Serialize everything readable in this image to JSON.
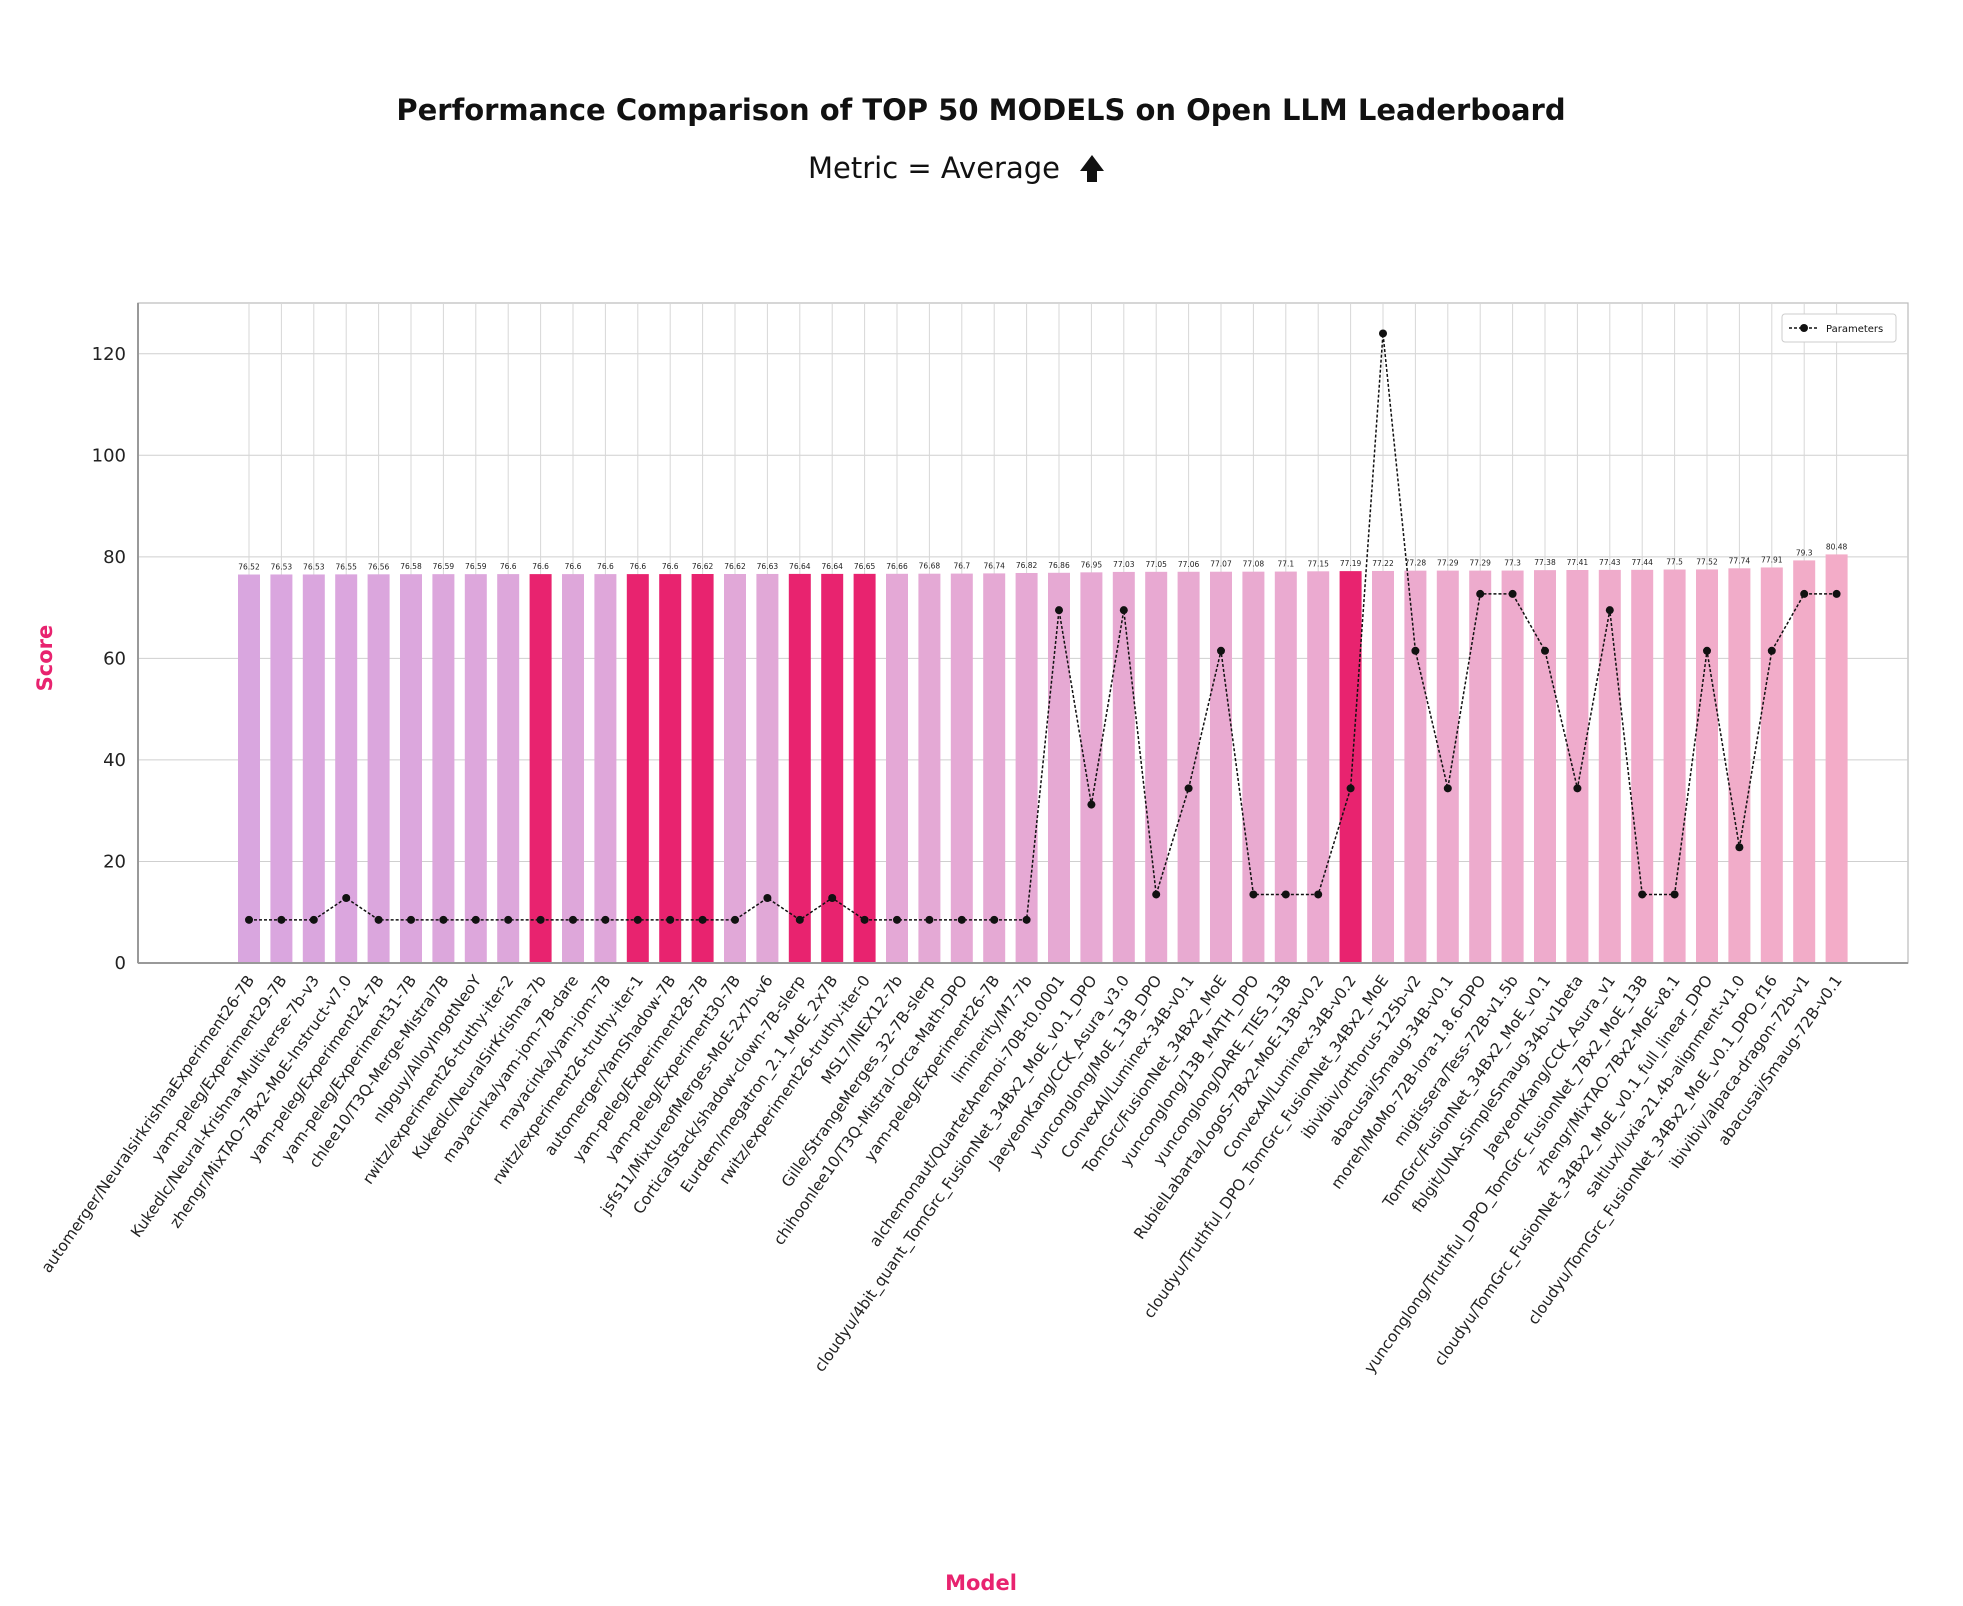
{
  "chart_data": {
    "type": "bar",
    "title": "Performance Comparison of TOP 50 MODELS on Open LLM Leaderboard",
    "subtitle": "Metric = Average",
    "subtitle_icon": "up-arrow-icon",
    "xlabel": "Model",
    "ylabel": "Score",
    "ylim": [
      0,
      130
    ],
    "yticks": [
      0,
      20,
      40,
      60,
      80,
      100,
      120
    ],
    "grid": true,
    "legend": {
      "entries": [
        "Parameters"
      ],
      "position": "top-right"
    },
    "highlight_color": "#e8236f",
    "bar_gradient": [
      "#d9a6df",
      "#f3acc8"
    ],
    "line_color": "#111111",
    "categories": [
      "automerger/NeuralsirkrishnaExperiment26-7B",
      "yam-peleg/Experiment29-7B",
      "Kukedlc/Neural-Krishna-Multiverse-7b-v3",
      "zhengr/MixTAO-7Bx2-MoE-Instruct-v7.0",
      "yam-peleg/Experiment24-7B",
      "yam-peleg/Experiment31-7B",
      "chlee10/T3Q-Merge-Mistral7B",
      "nlpguy/AlloyIngotNeoY",
      "rwitz/experiment26-truthy-iter-2",
      "Kukedlc/NeuralSirKrishna-7b",
      "mayacinka/yam-jom-7B-dare",
      "mayacinka/yam-jom-7B",
      "rwitz/experiment26-truthy-iter-1",
      "automerger/YamShadow-7B",
      "yam-peleg/Experiment28-7B",
      "yam-peleg/Experiment30-7B",
      "jsfs11/MixtureofMerges-MoE-2x7b-v6",
      "CorticalStack/shadow-clown-7B-slerp",
      "Eurdem/megatron_2.1_MoE_2x7B",
      "rwitz/experiment26-truthy-iter-0",
      "MSL7/INEX12-7b",
      "Gille/StrangeMerges_32-7B-slerp",
      "chihoonlee10/T3Q-Mistral-Orca-Math-DPO",
      "yam-peleg/Experiment26-7B",
      "liminerity/M7-7b",
      "alchemonaut/QuartetAnemoi-70B-t0.0001",
      "cloudyu/4bit_quant_TomGrc_FusionNet_34Bx2_MoE_v0.1_DPO",
      "JaeyeonKang/CCK_Asura_v3.0",
      "yunconglong/MoE_13B_DPO",
      "ConvexAI/Luminex-34B-v0.1",
      "TomGrc/FusionNet_34Bx2_MoE",
      "yunconglong/13B_MATH_DPO",
      "yunconglong/DARE_TIES_13B",
      "RubielLabarta/LogoS-7Bx2-MoE-13B-v0.2",
      "ConvexAI/Luminex-34B-v0.2",
      "cloudyu/Truthful_DPO_TomGrc_FusionNet_34Bx2_MoE",
      "ibivibiv/orthorus-125b-v2",
      "abacusai/Smaug-34B-v0.1",
      "moreh/MoMo-72B-lora-1.8.6-DPO",
      "migtissera/Tess-72B-v1.5b",
      "TomGrc/FusionNet_34Bx2_MoE_v0.1",
      "fblgit/UNA-SimpleSmaug-34b-v1beta",
      "JaeyeonKang/CCK_Asura_v1",
      "yunconglong/Truthful_DPO_TomGrc_FusionNet_7Bx2_MoE_13B",
      "zhengr/MixTAO-7Bx2-MoE-v8.1",
      "cloudyu/TomGrc_FusionNet_34Bx2_MoE_v0.1_full_linear_DPO",
      "saltlux/luxia-21.4b-alignment-v1.0",
      "cloudyu/TomGrc_FusionNet_34Bx2_MoE_v0.1_DPO_f16",
      "ibivibiv/alpaca-dragon-72b-v1",
      "abacusai/Smaug-72B-v0.1"
    ],
    "series": [
      {
        "name": "Average",
        "type": "bar",
        "values": [
          76.52,
          76.53,
          76.53,
          76.55,
          76.56,
          76.58,
          76.59,
          76.59,
          76.6,
          76.6,
          76.6,
          76.6,
          76.6,
          76.6,
          76.62,
          76.62,
          76.63,
          76.64,
          76.64,
          76.65,
          76.66,
          76.68,
          76.7,
          76.74,
          76.82,
          76.86,
          76.95,
          77.03,
          77.05,
          77.06,
          77.07,
          77.08,
          77.1,
          77.15,
          77.19,
          77.22,
          77.28,
          77.29,
          77.29,
          77.3,
          77.38,
          77.41,
          77.43,
          77.44,
          77.5,
          77.52,
          77.74,
          77.91,
          79.3,
          80.48
        ],
        "labels": [
          "76.52",
          "76.53",
          "76.53",
          "76.55",
          "76.56",
          "76.58",
          "76.59",
          "76.59",
          "76.6",
          "76.6",
          "76.6",
          "76.6",
          "76.6",
          "76.6",
          "76.62",
          "76.62",
          "76.63",
          "76.64",
          "76.64",
          "76.65",
          "76.66",
          "76.68",
          "76.7",
          "76.74",
          "76.82",
          "76.86",
          "76.95",
          "77.03",
          "77.05",
          "77.06",
          "77.07",
          "77.08",
          "77.1",
          "77.15",
          "77.19",
          "77.22",
          "77.28",
          "77.29",
          "77.29",
          "77.3",
          "77.38",
          "77.41",
          "77.43",
          "77.44",
          "77.5",
          "77.52",
          "77.74",
          "77.91",
          "79.3",
          "80.48"
        ],
        "highlighted": [
          9,
          12,
          13,
          14,
          17,
          18,
          19,
          34
        ]
      },
      {
        "name": "Parameters",
        "type": "line",
        "values": [
          8.5,
          8.5,
          8.5,
          12.8,
          8.5,
          8.5,
          8.5,
          8.5,
          8.5,
          8.5,
          8.5,
          8.5,
          8.5,
          8.5,
          8.5,
          8.5,
          12.8,
          8.5,
          12.8,
          8.5,
          8.5,
          8.5,
          8.5,
          8.5,
          8.5,
          69.5,
          31.2,
          69.5,
          13.5,
          34.4,
          61.5,
          13.5,
          13.5,
          13.5,
          34.4,
          124.0,
          61.5,
          34.4,
          72.7,
          72.7,
          61.5,
          34.4,
          69.5,
          13.5,
          13.5,
          61.5,
          22.8,
          61.5,
          72.7,
          72.7
        ]
      }
    ]
  }
}
